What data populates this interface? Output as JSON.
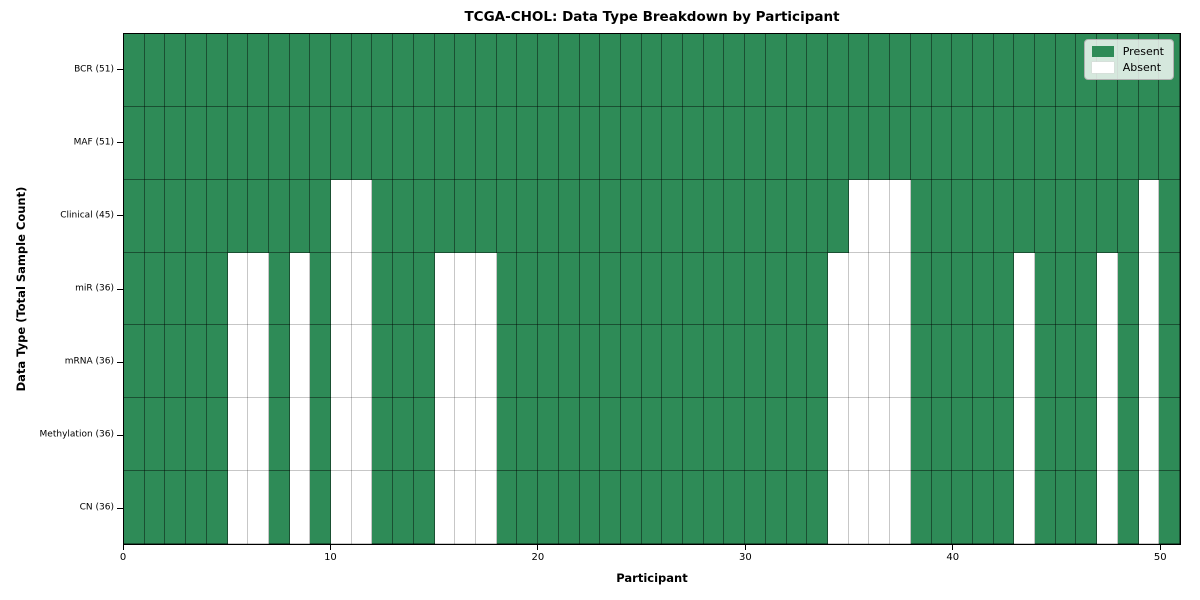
{
  "chart_data": {
    "type": "heatmap",
    "title": "TCGA-CHOL: Data Type Breakdown by Participant",
    "xlabel": "Participant",
    "ylabel": "Data Type (Total Sample Count)",
    "n_participants": 51,
    "x_range": [
      0,
      51
    ],
    "x_ticks": [
      0,
      10,
      20,
      30,
      40,
      50
    ],
    "grid": true,
    "rows": [
      {
        "label": "BCR (51)",
        "data_type": "BCR",
        "present_count": 51,
        "absent_participants": []
      },
      {
        "label": "MAF (51)",
        "data_type": "MAF",
        "present_count": 51,
        "absent_participants": []
      },
      {
        "label": "Clinical (45)",
        "data_type": "Clinical",
        "present_count": 45,
        "absent_participants": [
          10,
          11,
          35,
          36,
          37,
          49
        ]
      },
      {
        "label": "miR (36)",
        "data_type": "miR",
        "present_count": 36,
        "absent_participants": [
          5,
          6,
          8,
          10,
          11,
          15,
          16,
          17,
          34,
          35,
          36,
          37,
          43,
          47,
          49
        ]
      },
      {
        "label": "mRNA (36)",
        "data_type": "mRNA",
        "present_count": 36,
        "absent_participants": [
          5,
          6,
          8,
          10,
          11,
          15,
          16,
          17,
          34,
          35,
          36,
          37,
          43,
          47,
          49
        ]
      },
      {
        "label": "Methylation (36)",
        "data_type": "Methylation",
        "present_count": 36,
        "absent_participants": [
          5,
          6,
          8,
          10,
          11,
          15,
          16,
          17,
          34,
          35,
          36,
          37,
          43,
          47,
          49
        ]
      },
      {
        "label": "CN (36)",
        "data_type": "CN",
        "present_count": 36,
        "absent_participants": [
          5,
          6,
          8,
          10,
          11,
          15,
          16,
          17,
          34,
          35,
          36,
          37,
          43,
          47,
          49
        ]
      }
    ],
    "legend": {
      "position": "upper right",
      "entries": [
        {
          "label": "Present",
          "color": "#2e8b57"
        },
        {
          "label": "Absent",
          "color": "#ffffff"
        }
      ]
    },
    "colors": {
      "present": "#2e8b57",
      "absent": "#ffffff",
      "spine": "#000000",
      "cell_edge_on_green": "#1e4a33",
      "cell_edge_on_white": "#c0c0c0"
    }
  }
}
